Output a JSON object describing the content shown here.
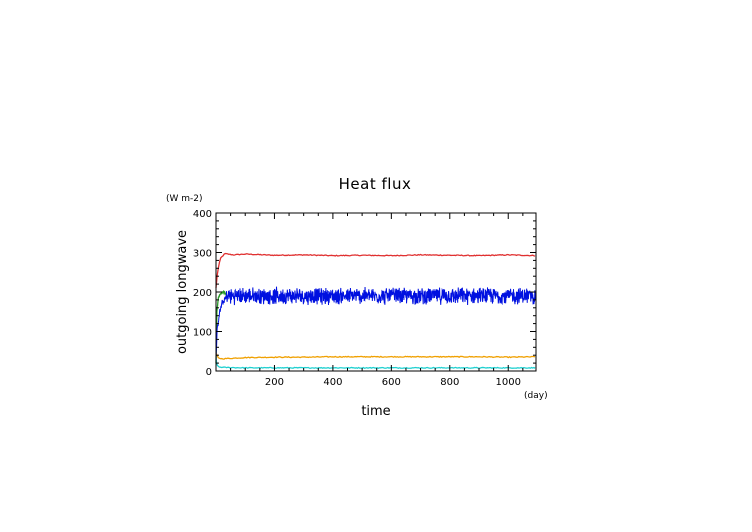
{
  "chart_data": {
    "type": "line",
    "title": "Heat flux",
    "xlabel": "time",
    "ylabel": "outgoing longwave",
    "x_unit": "(day)",
    "y_unit": "(W m-2)",
    "xlim": [
      0,
      1095
    ],
    "ylim": [
      0,
      400
    ],
    "x_ticks": [
      200,
      400,
      600,
      800,
      1000
    ],
    "y_ticks": [
      0,
      100,
      200,
      300,
      400
    ],
    "grid": false,
    "series": [
      {
        "color": "#e03030",
        "values": [
          [
            0,
            210
          ],
          [
            5,
            250
          ],
          [
            15,
            285
          ],
          [
            30,
            297
          ],
          [
            60,
            294
          ],
          [
            100,
            296
          ],
          [
            200,
            293
          ],
          [
            300,
            294
          ],
          [
            400,
            292
          ],
          [
            500,
            293
          ],
          [
            600,
            292
          ],
          [
            700,
            294
          ],
          [
            800,
            293
          ],
          [
            900,
            292
          ],
          [
            1000,
            294
          ],
          [
            1095,
            292
          ]
        ]
      },
      {
        "color": "#2a9a2a",
        "values": [
          [
            0,
            20
          ],
          [
            3,
            150
          ],
          [
            8,
            185
          ],
          [
            15,
            195
          ],
          [
            25,
            200
          ],
          [
            35,
            195
          ]
        ]
      },
      {
        "color": "#f0a000",
        "values": [
          [
            0,
            45
          ],
          [
            3,
            40
          ],
          [
            8,
            33
          ],
          [
            20,
            31
          ],
          [
            50,
            32
          ],
          [
            100,
            34
          ],
          [
            200,
            35
          ],
          [
            300,
            35
          ],
          [
            400,
            36
          ],
          [
            500,
            36
          ],
          [
            600,
            36
          ],
          [
            700,
            36
          ],
          [
            800,
            36
          ],
          [
            900,
            36
          ],
          [
            1000,
            35
          ],
          [
            1095,
            36
          ]
        ]
      },
      {
        "color": "#20d0d0",
        "values": [
          [
            0,
            30
          ],
          [
            3,
            15
          ],
          [
            10,
            10
          ],
          [
            30,
            9
          ],
          [
            100,
            8
          ],
          [
            300,
            8
          ],
          [
            500,
            8
          ],
          [
            700,
            8
          ],
          [
            900,
            8
          ],
          [
            1095,
            8
          ]
        ]
      },
      {
        "color": "#0010e0",
        "mean": 190,
        "spread": 20,
        "values": [
          [
            0,
            30
          ],
          [
            4,
            100
          ],
          [
            10,
            140
          ],
          [
            20,
            170
          ],
          [
            40,
            190
          ],
          [
            1095,
            190
          ]
        ]
      }
    ]
  }
}
